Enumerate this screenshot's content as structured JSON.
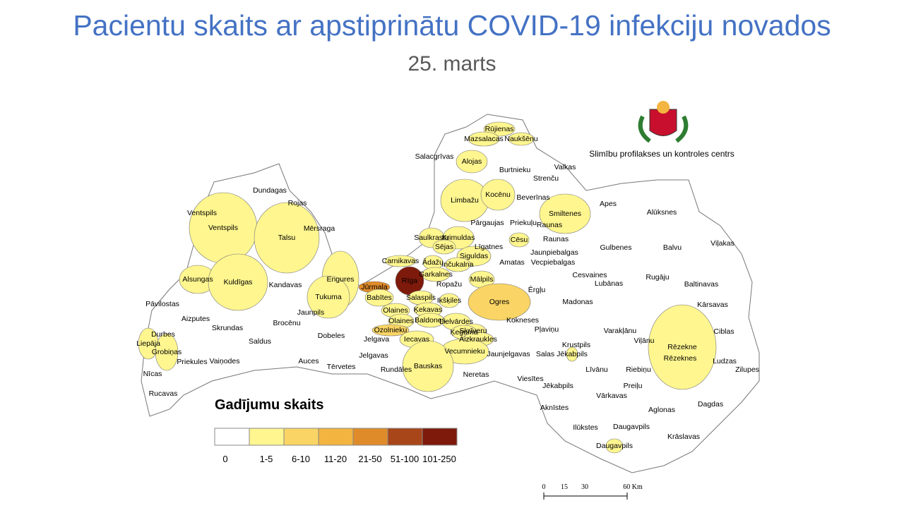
{
  "title": "Pacientu skaits ar apstiprinātu COVID-19 infekciju novados",
  "subtitle": "25. marts",
  "organization": "Slimību profilakses un kontroles centrs",
  "legend": {
    "title": "Gadījumu skaits",
    "classes": [
      {
        "label": "0",
        "color": "#ffffff"
      },
      {
        "label": "1-5",
        "color": "#fff68f"
      },
      {
        "label": "6-10",
        "color": "#fad565"
      },
      {
        "label": "11-20",
        "color": "#f3b540"
      },
      {
        "label": "21-50",
        "color": "#e08b2a"
      },
      {
        "label": "51-100",
        "color": "#a8461a"
      },
      {
        "label": "101-250",
        "color": "#7e1a0c"
      }
    ]
  },
  "regions": [
    {
      "name": "Rūjienas",
      "class": 1
    },
    {
      "name": "Naukšēnu",
      "class": 1
    },
    {
      "name": "Mazsalacas",
      "class": 1
    },
    {
      "name": "Salacgrīvas",
      "class": 0
    },
    {
      "name": "Alojas",
      "class": 1
    },
    {
      "name": "Burtnieku",
      "class": 0
    },
    {
      "name": "Valkas",
      "class": 0
    },
    {
      "name": "Strenču",
      "class": 0
    },
    {
      "name": "Dundagas",
      "class": 0
    },
    {
      "name": "Limbažu",
      "class": 1
    },
    {
      "name": "Kocēnu",
      "class": 1
    },
    {
      "name": "Beverīnas",
      "class": 0
    },
    {
      "name": "Apes",
      "class": 0
    },
    {
      "name": "Rojas",
      "class": 0
    },
    {
      "name": "Smiltenes",
      "class": 1
    },
    {
      "name": "Alūksnes",
      "class": 0
    },
    {
      "name": "Ventspils",
      "class": 0
    },
    {
      "name": "Ventspils",
      "class": 1
    },
    {
      "name": "Mērsraga",
      "class": 0
    },
    {
      "name": "Talsu",
      "class": 1
    },
    {
      "name": "Pārgaujas",
      "class": 0
    },
    {
      "name": "Priekuļu",
      "class": 0
    },
    {
      "name": "Raunas",
      "class": 0
    },
    {
      "name": "Saulkrastu",
      "class": 1
    },
    {
      "name": "Krimuldas",
      "class": 1
    },
    {
      "name": "Cēsu",
      "class": 1
    },
    {
      "name": "Raunas",
      "class": 0
    },
    {
      "name": "Sējas",
      "class": 1
    },
    {
      "name": "Līgatnes",
      "class": 0
    },
    {
      "name": "Jaunpiebalgas",
      "class": 0
    },
    {
      "name": "Gulbenes",
      "class": 0
    },
    {
      "name": "Balvu",
      "class": 0
    },
    {
      "name": "Viļakas",
      "class": 0
    },
    {
      "name": "Siguldas",
      "class": 1
    },
    {
      "name": "Carnikavas",
      "class": 1
    },
    {
      "name": "Ādažu",
      "class": 1
    },
    {
      "name": "Inčukalna",
      "class": 1
    },
    {
      "name": "Amatas",
      "class": 0
    },
    {
      "name": "Vecpiebalgas",
      "class": 0
    },
    {
      "name": "Garkalnes",
      "class": 1
    },
    {
      "name": "Cesvaines",
      "class": 0
    },
    {
      "name": "Rugāju",
      "class": 0
    },
    {
      "name": "Alsungas",
      "class": 1
    },
    {
      "name": "Kuldīgas",
      "class": 1
    },
    {
      "name": "Engures",
      "class": 1
    },
    {
      "name": "Rīga",
      "class": 6
    },
    {
      "name": "Mālpils",
      "class": 1
    },
    {
      "name": "Kandavas",
      "class": 0
    },
    {
      "name": "Jūrmala",
      "class": 4
    },
    {
      "name": "Ropažu",
      "class": 0
    },
    {
      "name": "Lubānas",
      "class": 0
    },
    {
      "name": "Ērgļu",
      "class": 0
    },
    {
      "name": "Baltinavas",
      "class": 0
    },
    {
      "name": "Tukuma",
      "class": 1
    },
    {
      "name": "Ikšķiles",
      "class": 1
    },
    {
      "name": "Babītes",
      "class": 1
    },
    {
      "name": "Salaspils",
      "class": 1
    },
    {
      "name": "Ogres",
      "class": 2
    },
    {
      "name": "Madonas",
      "class": 0
    },
    {
      "name": "Pāvilostas",
      "class": 0
    },
    {
      "name": "Kārsavas",
      "class": 0
    },
    {
      "name": "Olaines",
      "class": 1
    },
    {
      "name": "Ķekavas",
      "class": 1
    },
    {
      "name": "Jaunpils",
      "class": 0
    },
    {
      "name": "Aizputes",
      "class": 0
    },
    {
      "name": "Olaines",
      "class": 1
    },
    {
      "name": "Baldones",
      "class": 1
    },
    {
      "name": "Lielvārdes",
      "class": 1
    },
    {
      "name": "Kokneses",
      "class": 0
    },
    {
      "name": "Brocēnu",
      "class": 0
    },
    {
      "name": "Skrundas",
      "class": 0
    },
    {
      "name": "Ozolnieku",
      "class": 2
    },
    {
      "name": "Skrīveru",
      "class": 1
    },
    {
      "name": "Pļaviņu",
      "class": 0
    },
    {
      "name": "Varakļānu",
      "class": 0
    },
    {
      "name": "Ciblas",
      "class": 0
    },
    {
      "name": "Ķeguma",
      "class": 1
    },
    {
      "name": "Durbes",
      "class": 0
    },
    {
      "name": "Dobeles",
      "class": 0
    },
    {
      "name": "Iecavas",
      "class": 1
    },
    {
      "name": "Aizkraukles",
      "class": 1
    },
    {
      "name": "Viļānu",
      "class": 0
    },
    {
      "name": "Jelgava",
      "class": 0
    },
    {
      "name": "Liepāja",
      "class": 1
    },
    {
      "name": "Saldus",
      "class": 0
    },
    {
      "name": "Krustpils",
      "class": 0
    },
    {
      "name": "Rēzekne",
      "class": 1
    },
    {
      "name": "Grobiņas",
      "class": 1
    },
    {
      "name": "Vecumnieku",
      "class": 1
    },
    {
      "name": "Jaunjelgavas",
      "class": 0
    },
    {
      "name": "Salas",
      "class": 0
    },
    {
      "name": "Jēkabpils",
      "class": 1
    },
    {
      "name": "Jelgavas",
      "class": 0
    },
    {
      "name": "Rēzeknes",
      "class": 1
    },
    {
      "name": "Priekules",
      "class": 0
    },
    {
      "name": "Vaiņodes",
      "class": 0
    },
    {
      "name": "Auces",
      "class": 0
    },
    {
      "name": "Ludzas",
      "class": 0
    },
    {
      "name": "Tērvetes",
      "class": 0
    },
    {
      "name": "Bauskas",
      "class": 1
    },
    {
      "name": "Rundāles",
      "class": 0
    },
    {
      "name": "Līvānu",
      "class": 0
    },
    {
      "name": "Riebiņu",
      "class": 0
    },
    {
      "name": "Zilupes",
      "class": 0
    },
    {
      "name": "Nīcas",
      "class": 0
    },
    {
      "name": "Neretas",
      "class": 0
    },
    {
      "name": "Viesītes",
      "class": 0
    },
    {
      "name": "Preiļu",
      "class": 0
    },
    {
      "name": "Jēkabpils",
      "class": 0
    },
    {
      "name": "Rucavas",
      "class": 0
    },
    {
      "name": "Vārkavas",
      "class": 0
    },
    {
      "name": "Dagdas",
      "class": 0
    },
    {
      "name": "Aknīstes",
      "class": 0
    },
    {
      "name": "Aglonas",
      "class": 0
    },
    {
      "name": "Ilūkstes",
      "class": 0
    },
    {
      "name": "Daugavpils",
      "class": 0
    },
    {
      "name": "Krāslavas",
      "class": 0
    },
    {
      "name": "Daugavpils",
      "class": 1
    }
  ],
  "scale": {
    "labels": [
      "0",
      "15",
      "30",
      "60 Km"
    ]
  }
}
